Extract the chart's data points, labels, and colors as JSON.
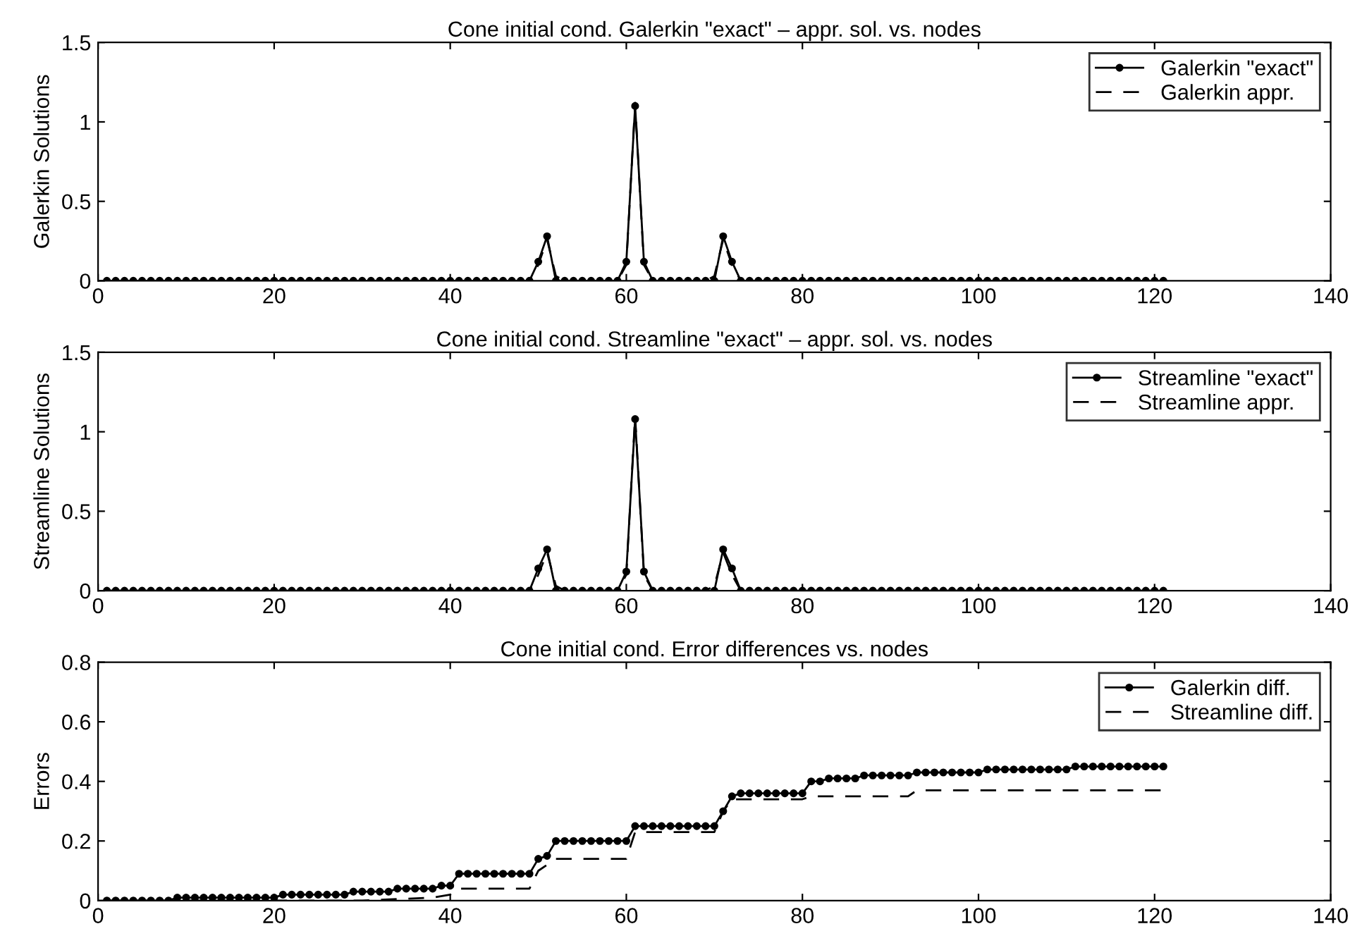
{
  "chart_data": [
    {
      "type": "line",
      "title": "Cone initial cond. Galerkin \"exact\" – appr. sol. vs. nodes",
      "ylabel": "Galerkin Solutions",
      "x": [
        1,
        2,
        3,
        4,
        5,
        6,
        7,
        8,
        9,
        10,
        11,
        12,
        13,
        14,
        15,
        16,
        17,
        18,
        19,
        20,
        21,
        22,
        23,
        24,
        25,
        26,
        27,
        28,
        29,
        30,
        31,
        32,
        33,
        34,
        35,
        36,
        37,
        38,
        39,
        40,
        41,
        42,
        43,
        44,
        45,
        46,
        47,
        48,
        49,
        50,
        51,
        52,
        53,
        54,
        55,
        56,
        57,
        58,
        59,
        60,
        61,
        62,
        63,
        64,
        65,
        66,
        67,
        68,
        69,
        70,
        71,
        72,
        73,
        74,
        75,
        76,
        77,
        78,
        79,
        80,
        81,
        82,
        83,
        84,
        85,
        86,
        87,
        88,
        89,
        90,
        91,
        92,
        93,
        94,
        95,
        96,
        97,
        98,
        99,
        100,
        101,
        102,
        103,
        104,
        105,
        106,
        107,
        108,
        109,
        110,
        111,
        112,
        113,
        114,
        115,
        116,
        117,
        118,
        119,
        120,
        121
      ],
      "series": [
        {
          "name": "Galerkin \"exact\"",
          "color": "#000000",
          "marker": "circle",
          "line_style": "solid",
          "values": [
            0,
            0,
            0,
            0,
            0,
            0,
            0,
            0,
            0,
            0,
            0,
            0,
            0,
            0,
            0,
            0,
            0,
            0,
            0,
            0,
            0,
            0,
            0,
            0,
            0,
            0,
            0,
            0,
            0,
            0,
            0,
            0,
            0,
            0,
            0,
            0,
            0,
            0,
            0,
            0,
            0,
            0,
            0,
            0,
            0,
            0,
            0,
            0,
            0,
            0.12,
            0.28,
            0,
            0,
            0,
            0,
            0,
            0,
            0,
            0,
            0.12,
            1.1,
            0.12,
            0,
            0,
            0,
            0,
            0,
            0,
            0,
            0,
            0.28,
            0.12,
            0,
            0,
            0,
            0,
            0,
            0,
            0,
            0,
            0,
            0,
            0,
            0,
            0,
            0,
            0,
            0,
            0,
            0,
            0,
            0,
            0,
            0,
            0,
            0,
            0,
            0,
            0,
            0,
            0,
            0,
            0,
            0,
            0,
            0,
            0,
            0,
            0,
            0,
            0,
            0,
            0,
            0,
            0,
            0,
            0,
            0,
            0,
            0,
            0
          ]
        },
        {
          "name": "Galerkin appr.",
          "color": "#000000",
          "marker": "none",
          "line_style": "dashed",
          "x": [
            1,
            49,
            50,
            51,
            52,
            53,
            59,
            60,
            61,
            62,
            63,
            69,
            70,
            71,
            72,
            73,
            80,
            81,
            82,
            121
          ],
          "values": [
            0,
            0,
            0.1,
            0.26,
            0.03,
            0,
            0,
            0.1,
            1.12,
            0.1,
            0,
            0,
            0.03,
            0.26,
            0.1,
            0,
            0,
            0.02,
            0,
            0
          ]
        }
      ],
      "xlim": [
        0,
        140
      ],
      "xticks": [
        0,
        20,
        40,
        60,
        80,
        100,
        120,
        140
      ],
      "ylim": [
        0,
        1.5
      ],
      "yticks": [
        0,
        0.5,
        1,
        1.5
      ],
      "grid": false,
      "legend": "top right"
    },
    {
      "type": "line",
      "title": "Cone initial cond. Streamline \"exact\" – appr. sol. vs. nodes",
      "ylabel": "Streamline Solutions",
      "x": [
        1,
        2,
        3,
        4,
        5,
        6,
        7,
        8,
        9,
        10,
        11,
        12,
        13,
        14,
        15,
        16,
        17,
        18,
        19,
        20,
        21,
        22,
        23,
        24,
        25,
        26,
        27,
        28,
        29,
        30,
        31,
        32,
        33,
        34,
        35,
        36,
        37,
        38,
        39,
        40,
        41,
        42,
        43,
        44,
        45,
        46,
        47,
        48,
        49,
        50,
        51,
        52,
        53,
        54,
        55,
        56,
        57,
        58,
        59,
        60,
        61,
        62,
        63,
        64,
        65,
        66,
        67,
        68,
        69,
        70,
        71,
        72,
        73,
        74,
        75,
        76,
        77,
        78,
        79,
        80,
        81,
        82,
        83,
        84,
        85,
        86,
        87,
        88,
        89,
        90,
        91,
        92,
        93,
        94,
        95,
        96,
        97,
        98,
        99,
        100,
        101,
        102,
        103,
        104,
        105,
        106,
        107,
        108,
        109,
        110,
        111,
        112,
        113,
        114,
        115,
        116,
        117,
        118,
        119,
        120,
        121
      ],
      "series": [
        {
          "name": "Streamline \"exact\"",
          "color": "#000000",
          "marker": "circle",
          "line_style": "solid",
          "values": [
            0,
            0,
            0,
            0,
            0,
            0,
            0,
            0,
            0,
            0,
            0,
            0,
            0,
            0,
            0,
            0,
            0,
            0,
            0,
            0,
            0,
            0,
            0,
            0,
            0,
            0,
            0,
            0,
            0,
            0,
            0,
            0,
            0,
            0,
            0,
            0,
            0,
            0,
            0,
            0,
            0,
            0,
            0,
            0,
            0,
            0,
            0,
            0,
            0,
            0.14,
            0.26,
            0,
            0,
            0,
            0,
            0,
            0,
            0,
            0,
            0.12,
            1.08,
            0.12,
            0,
            0,
            0,
            0,
            0,
            0,
            0,
            0,
            0.26,
            0.14,
            0,
            0,
            0,
            0,
            0,
            0,
            0,
            0,
            0,
            0,
            0,
            0,
            0,
            0,
            0,
            0,
            0,
            0,
            0,
            0,
            0,
            0,
            0,
            0,
            0,
            0,
            0,
            0,
            0,
            0,
            0,
            0,
            0,
            0,
            0,
            0,
            0,
            0,
            0,
            0,
            0,
            0,
            0,
            0,
            0,
            0,
            0,
            0,
            0
          ]
        },
        {
          "name": "Streamline appr.",
          "color": "#000000",
          "marker": "none",
          "line_style": "dashed",
          "x": [
            1,
            49,
            50,
            51,
            52,
            53,
            59,
            60,
            61,
            62,
            63,
            69,
            70,
            71,
            72,
            73,
            121
          ],
          "values": [
            0,
            0,
            0.1,
            0.24,
            0.03,
            0,
            0,
            0.1,
            1.1,
            0.1,
            0,
            0,
            0.03,
            0.24,
            0.1,
            0,
            0
          ]
        }
      ],
      "xlim": [
        0,
        140
      ],
      "xticks": [
        0,
        20,
        40,
        60,
        80,
        100,
        120,
        140
      ],
      "ylim": [
        0,
        1.5
      ],
      "yticks": [
        0,
        0.5,
        1,
        1.5
      ],
      "grid": false,
      "legend": "top right"
    },
    {
      "type": "line",
      "title": "Cone initial cond. Error differences vs. nodes",
      "ylabel": "Errors",
      "x": [
        1,
        2,
        3,
        4,
        5,
        6,
        7,
        8,
        9,
        10,
        11,
        12,
        13,
        14,
        15,
        16,
        17,
        18,
        19,
        20,
        21,
        22,
        23,
        24,
        25,
        26,
        27,
        28,
        29,
        30,
        31,
        32,
        33,
        34,
        35,
        36,
        37,
        38,
        39,
        40,
        41,
        42,
        43,
        44,
        45,
        46,
        47,
        48,
        49,
        50,
        51,
        52,
        53,
        54,
        55,
        56,
        57,
        58,
        59,
        60,
        61,
        62,
        63,
        64,
        65,
        66,
        67,
        68,
        69,
        70,
        71,
        72,
        73,
        74,
        75,
        76,
        77,
        78,
        79,
        80,
        81,
        82,
        83,
        84,
        85,
        86,
        87,
        88,
        89,
        90,
        91,
        92,
        93,
        94,
        95,
        96,
        97,
        98,
        99,
        100,
        101,
        102,
        103,
        104,
        105,
        106,
        107,
        108,
        109,
        110,
        111,
        112,
        113,
        114,
        115,
        116,
        117,
        118,
        119,
        120,
        121
      ],
      "series": [
        {
          "name": "Galerkin diff.",
          "color": "#000000",
          "marker": "circle",
          "line_style": "solid",
          "values": [
            0,
            0,
            0,
            0,
            0,
            0,
            0,
            0,
            0.01,
            0.01,
            0.01,
            0.01,
            0.01,
            0.01,
            0.01,
            0.01,
            0.01,
            0.01,
            0.01,
            0.01,
            0.02,
            0.02,
            0.02,
            0.02,
            0.02,
            0.02,
            0.02,
            0.02,
            0.03,
            0.03,
            0.03,
            0.03,
            0.03,
            0.04,
            0.04,
            0.04,
            0.04,
            0.04,
            0.05,
            0.05,
            0.09,
            0.09,
            0.09,
            0.09,
            0.09,
            0.09,
            0.09,
            0.09,
            0.09,
            0.14,
            0.15,
            0.2,
            0.2,
            0.2,
            0.2,
            0.2,
            0.2,
            0.2,
            0.2,
            0.2,
            0.25,
            0.25,
            0.25,
            0.25,
            0.25,
            0.25,
            0.25,
            0.25,
            0.25,
            0.25,
            0.3,
            0.35,
            0.36,
            0.36,
            0.36,
            0.36,
            0.36,
            0.36,
            0.36,
            0.36,
            0.4,
            0.4,
            0.41,
            0.41,
            0.41,
            0.41,
            0.42,
            0.42,
            0.42,
            0.42,
            0.42,
            0.42,
            0.43,
            0.43,
            0.43,
            0.43,
            0.43,
            0.43,
            0.43,
            0.43,
            0.44,
            0.44,
            0.44,
            0.44,
            0.44,
            0.44,
            0.44,
            0.44,
            0.44,
            0.44,
            0.45,
            0.45,
            0.45,
            0.45,
            0.45,
            0.45,
            0.45,
            0.45,
            0.45,
            0.45,
            0.45
          ]
        },
        {
          "name": "Streamline diff.",
          "color": "#000000",
          "marker": "none",
          "line_style": "dashed",
          "x": [
            1,
            30,
            38,
            40,
            41,
            49,
            50,
            51,
            52,
            60,
            61,
            70,
            71,
            72,
            80,
            81,
            92,
            93,
            121
          ],
          "values": [
            0,
            0,
            0.01,
            0.02,
            0.04,
            0.04,
            0.1,
            0.12,
            0.14,
            0.14,
            0.23,
            0.23,
            0.3,
            0.34,
            0.34,
            0.35,
            0.35,
            0.37,
            0.37
          ]
        }
      ],
      "xlim": [
        0,
        140
      ],
      "xticks": [
        0,
        20,
        40,
        60,
        80,
        100,
        120,
        140
      ],
      "ylim": [
        0,
        0.8
      ],
      "yticks": [
        0,
        0.2,
        0.4,
        0.6,
        0.8
      ],
      "grid": false,
      "legend": "top right"
    }
  ]
}
